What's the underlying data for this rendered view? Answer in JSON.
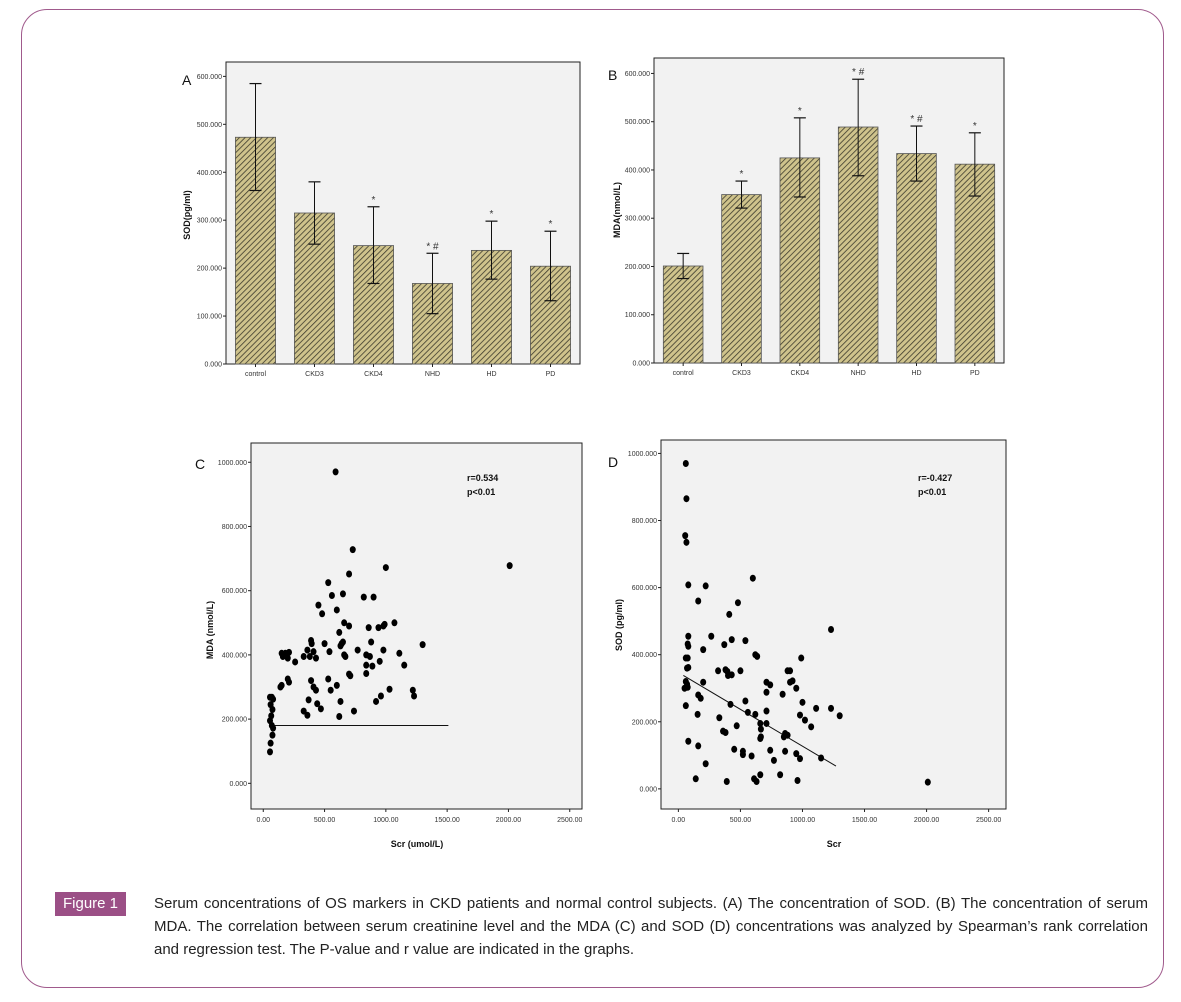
{
  "figure": {
    "badge": "Figure 1",
    "caption": "Serum concentrations of OS markers in CKD patients and normal control subjects. (A) The concentration of SOD. (B) The concentration of serum MDA. The correlation between serum creatinine level and the MDA (C) and SOD (D) concentrations was analyzed by Spearman’s rank correlation and regression test. The P-value and r value are indicated in the graphs.",
    "accent_color": "#9b4f86",
    "bar_fill_light": "#cfc38c",
    "bar_fill_dark": "#3c3a2c",
    "plot_bg": "#f2f2f2"
  },
  "chart_data": [
    {
      "panel": "A",
      "type": "bar",
      "title": "",
      "xlabel": "",
      "ylabel": "SOD(pg/ml)",
      "categories": [
        "control",
        "CKD3",
        "CKD4",
        "NHD",
        "HD",
        "PD"
      ],
      "values": [
        473,
        315,
        247,
        168,
        237,
        204
      ],
      "error_low": [
        362,
        250,
        168,
        105,
        177,
        132
      ],
      "error_high": [
        585,
        380,
        328,
        231,
        298,
        277
      ],
      "annotations": [
        "",
        "",
        "*",
        "* #",
        "*",
        "*"
      ],
      "ylim": [
        0,
        630
      ],
      "yticks": [
        0,
        100,
        200,
        300,
        400,
        500,
        600
      ],
      "ytick_labels": [
        "0.000",
        "100.000",
        "200.000",
        "300.000",
        "400.000",
        "500.000",
        "600.000"
      ],
      "grid": false
    },
    {
      "panel": "B",
      "type": "bar",
      "title": "",
      "xlabel": "",
      "ylabel": "MDA(nmol/L)",
      "categories": [
        "control",
        "CKD3",
        "CKD4",
        "NHD",
        "HD",
        "PD"
      ],
      "values": [
        201,
        349,
        425,
        489,
        434,
        412
      ],
      "error_low": [
        175,
        321,
        344,
        388,
        377,
        346
      ],
      "error_high": [
        227,
        377,
        508,
        588,
        491,
        477
      ],
      "annotations": [
        "",
        "*",
        "*",
        "* #",
        "* #",
        "*"
      ],
      "ylim": [
        0,
        632
      ],
      "yticks": [
        0,
        100,
        200,
        300,
        400,
        500,
        600
      ],
      "ytick_labels": [
        "0.000",
        "100.000",
        "200.000",
        "300.000",
        "400.000",
        "500.000",
        "600.000"
      ],
      "grid": false
    },
    {
      "panel": "C",
      "type": "scatter",
      "title": "",
      "xlabel": "Scr (umol/L)",
      "ylabel": "MDA (nmol/L)",
      "xlim": [
        -100,
        2600
      ],
      "ylim": [
        -80,
        1060
      ],
      "xticks": [
        0,
        500,
        1000,
        1500,
        2000,
        2500
      ],
      "xtick_labels": [
        "0.00",
        "500.00",
        "1000.00",
        "1500.00",
        "2000.00",
        "2500.00"
      ],
      "yticks": [
        0,
        200,
        400,
        600,
        800,
        1000
      ],
      "ytick_labels": [
        "0.000",
        "200.000",
        "400.000",
        "600.000",
        "800.000",
        "1000.000"
      ],
      "stats": [
        "r=0.534",
        "p<0.01"
      ],
      "fit_line": {
        "x": [
          80,
          1510
        ],
        "y": [
          180,
          180
        ]
      },
      "points": [
        [
          590,
          970
        ],
        [
          730,
          728
        ],
        [
          1000,
          672
        ],
        [
          2010,
          678
        ],
        [
          700,
          652
        ],
        [
          530,
          625
        ],
        [
          560,
          585
        ],
        [
          650,
          590
        ],
        [
          820,
          580
        ],
        [
          900,
          580
        ],
        [
          450,
          555
        ],
        [
          600,
          540
        ],
        [
          480,
          528
        ],
        [
          620,
          470
        ],
        [
          660,
          500
        ],
        [
          700,
          490
        ],
        [
          860,
          485
        ],
        [
          940,
          485
        ],
        [
          980,
          490
        ],
        [
          990,
          495
        ],
        [
          1070,
          500
        ],
        [
          390,
          445
        ],
        [
          395,
          435
        ],
        [
          500,
          435
        ],
        [
          640,
          435
        ],
        [
          650,
          440
        ],
        [
          630,
          428
        ],
        [
          880,
          440
        ],
        [
          1300,
          432
        ],
        [
          150,
          405
        ],
        [
          160,
          395
        ],
        [
          170,
          400
        ],
        [
          180,
          405
        ],
        [
          210,
          408
        ],
        [
          200,
          390
        ],
        [
          260,
          378
        ],
        [
          330,
          395
        ],
        [
          360,
          415
        ],
        [
          380,
          395
        ],
        [
          410,
          410
        ],
        [
          430,
          390
        ],
        [
          540,
          410
        ],
        [
          660,
          400
        ],
        [
          670,
          395
        ],
        [
          770,
          415
        ],
        [
          840,
          400
        ],
        [
          870,
          395
        ],
        [
          980,
          415
        ],
        [
          1110,
          405
        ],
        [
          950,
          380
        ],
        [
          890,
          365
        ],
        [
          840,
          368
        ],
        [
          1150,
          368
        ],
        [
          140,
          300
        ],
        [
          150,
          305
        ],
        [
          200,
          325
        ],
        [
          210,
          315
        ],
        [
          390,
          320
        ],
        [
          410,
          300
        ],
        [
          430,
          290
        ],
        [
          530,
          325
        ],
        [
          550,
          290
        ],
        [
          600,
          305
        ],
        [
          700,
          340
        ],
        [
          710,
          335
        ],
        [
          840,
          342
        ],
        [
          330,
          225
        ],
        [
          360,
          212
        ],
        [
          370,
          260
        ],
        [
          440,
          248
        ],
        [
          470,
          232
        ],
        [
          630,
          255
        ],
        [
          620,
          208
        ],
        [
          740,
          225
        ],
        [
          920,
          255
        ],
        [
          960,
          272
        ],
        [
          1030,
          293
        ],
        [
          1220,
          290
        ],
        [
          1230,
          272
        ],
        [
          55,
          268
        ],
        [
          70,
          268
        ],
        [
          80,
          262
        ],
        [
          60,
          245
        ],
        [
          75,
          230
        ],
        [
          65,
          210
        ],
        [
          55,
          195
        ],
        [
          70,
          180
        ],
        [
          80,
          172
        ],
        [
          75,
          150
        ],
        [
          60,
          125
        ],
        [
          55,
          98
        ]
      ]
    },
    {
      "panel": "D",
      "type": "scatter",
      "title": "",
      "xlabel": "Scr",
      "ylabel": "SOD (pg/ml)",
      "xlim": [
        -140,
        2640
      ],
      "ylim": [
        -60,
        1040
      ],
      "xticks": [
        0,
        500,
        1000,
        1500,
        2000,
        2500
      ],
      "xtick_labels": [
        "0.00",
        "500.00",
        "1000.00",
        "1500.00",
        "2000.00",
        "2500.00"
      ],
      "yticks": [
        0,
        200,
        400,
        600,
        800,
        1000
      ],
      "ytick_labels": [
        "0.000",
        "200.000",
        "400.000",
        "600.000",
        "800.000",
        "1000.000"
      ],
      "stats": [
        "r=-0.427",
        "p<0.01"
      ],
      "fit_line": {
        "x": [
          40,
          1270
        ],
        "y": [
          338,
          68
        ]
      },
      "points": [
        [
          60,
          970
        ],
        [
          65,
          865
        ],
        [
          55,
          755
        ],
        [
          65,
          735
        ],
        [
          80,
          608
        ],
        [
          220,
          605
        ],
        [
          600,
          628
        ],
        [
          160,
          560
        ],
        [
          480,
          555
        ],
        [
          410,
          520
        ],
        [
          1230,
          475
        ],
        [
          80,
          455
        ],
        [
          265,
          455
        ],
        [
          75,
          432
        ],
        [
          80,
          425
        ],
        [
          370,
          430
        ],
        [
          430,
          445
        ],
        [
          540,
          442
        ],
        [
          200,
          415
        ],
        [
          60,
          390
        ],
        [
          75,
          390
        ],
        [
          990,
          390
        ],
        [
          620,
          400
        ],
        [
          635,
          395
        ],
        [
          70,
          360
        ],
        [
          80,
          362
        ],
        [
          320,
          352
        ],
        [
          380,
          355
        ],
        [
          395,
          350
        ],
        [
          500,
          352
        ],
        [
          400,
          338
        ],
        [
          430,
          340
        ],
        [
          880,
          352
        ],
        [
          900,
          352
        ],
        [
          60,
          320
        ],
        [
          70,
          312
        ],
        [
          200,
          318
        ],
        [
          710,
          318
        ],
        [
          740,
          310
        ],
        [
          900,
          318
        ],
        [
          920,
          322
        ],
        [
          50,
          300
        ],
        [
          75,
          303
        ],
        [
          950,
          300
        ],
        [
          160,
          280
        ],
        [
          180,
          270
        ],
        [
          710,
          288
        ],
        [
          840,
          282
        ],
        [
          60,
          248
        ],
        [
          420,
          252
        ],
        [
          540,
          262
        ],
        [
          1000,
          258
        ],
        [
          620,
          222
        ],
        [
          560,
          228
        ],
        [
          710,
          232
        ],
        [
          1110,
          240
        ],
        [
          1230,
          240
        ],
        [
          1300,
          218
        ],
        [
          155,
          222
        ],
        [
          330,
          212
        ],
        [
          980,
          220
        ],
        [
          1020,
          205
        ],
        [
          1070,
          185
        ],
        [
          470,
          188
        ],
        [
          660,
          195
        ],
        [
          665,
          178
        ],
        [
          710,
          195
        ],
        [
          860,
          165
        ],
        [
          850,
          155
        ],
        [
          880,
          160
        ],
        [
          360,
          172
        ],
        [
          380,
          168
        ],
        [
          660,
          150
        ],
        [
          665,
          155
        ],
        [
          80,
          142
        ],
        [
          160,
          128
        ],
        [
          450,
          118
        ],
        [
          520,
          112
        ],
        [
          520,
          102
        ],
        [
          590,
          98
        ],
        [
          740,
          115
        ],
        [
          860,
          112
        ],
        [
          950,
          105
        ],
        [
          980,
          90
        ],
        [
          1150,
          92
        ],
        [
          220,
          75
        ],
        [
          770,
          85
        ],
        [
          140,
          30
        ],
        [
          390,
          22
        ],
        [
          610,
          30
        ],
        [
          630,
          22
        ],
        [
          660,
          42
        ],
        [
          820,
          42
        ],
        [
          960,
          25
        ],
        [
          2010,
          20
        ]
      ]
    }
  ]
}
